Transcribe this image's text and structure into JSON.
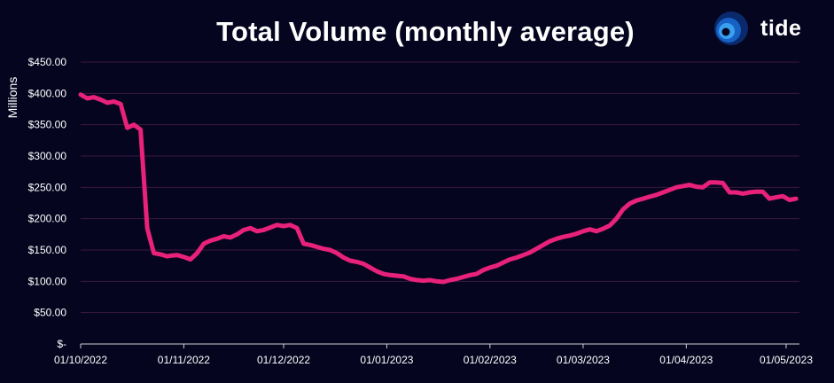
{
  "chart_data": {
    "type": "line",
    "title": "Total Volume (monthly average)",
    "ylabel": "Millions",
    "xlabel": "",
    "ylim": [
      0,
      450
    ],
    "y_ticks": [
      0,
      50,
      100,
      150,
      200,
      250,
      300,
      350,
      400,
      450
    ],
    "y_tick_labels": [
      "$-",
      "$50.00",
      "$100.00",
      "$150.00",
      "$200.00",
      "$250.00",
      "$300.00",
      "$350.00",
      "$400.00",
      "$450.00"
    ],
    "x_tick_labels": [
      "01/10/2022",
      "01/11/2022",
      "01/12/2022",
      "01/01/2023",
      "01/02/2023",
      "01/03/2023",
      "01/04/2023",
      "01/05/2023"
    ],
    "x_tick_dates": [
      "2022-10-01",
      "2022-11-01",
      "2022-12-01",
      "2023-01-01",
      "2023-02-01",
      "2023-03-01",
      "2023-04-01",
      "2023-05-01"
    ],
    "x_range": [
      "2022-10-01",
      "2023-05-05"
    ],
    "grid": "horizontal",
    "series": [
      {
        "color": "#e8217a",
        "x": [
          "2022-10-01",
          "2022-10-03",
          "2022-10-05",
          "2022-10-07",
          "2022-10-09",
          "2022-10-11",
          "2022-10-13",
          "2022-10-15",
          "2022-10-17",
          "2022-10-19",
          "2022-10-21",
          "2022-10-23",
          "2022-10-25",
          "2022-10-27",
          "2022-10-28",
          "2022-10-30",
          "2022-11-01",
          "2022-11-03",
          "2022-11-05",
          "2022-11-07",
          "2022-11-09",
          "2022-11-11",
          "2022-11-13",
          "2022-11-15",
          "2022-11-17",
          "2022-11-19",
          "2022-11-21",
          "2022-11-23",
          "2022-11-25",
          "2022-11-27",
          "2022-11-29",
          "2022-12-01",
          "2022-12-03",
          "2022-12-05",
          "2022-12-07",
          "2022-12-09",
          "2022-12-11",
          "2022-12-13",
          "2022-12-15",
          "2022-12-17",
          "2022-12-19",
          "2022-12-21",
          "2022-12-23",
          "2022-12-25",
          "2022-12-27",
          "2022-12-29",
          "2022-12-31",
          "2023-01-02",
          "2023-01-04",
          "2023-01-06",
          "2023-01-08",
          "2023-01-10",
          "2023-01-12",
          "2023-01-14",
          "2023-01-16",
          "2023-01-18",
          "2023-01-20",
          "2023-01-22",
          "2023-01-24",
          "2023-01-26",
          "2023-01-28",
          "2023-01-30",
          "2023-02-01",
          "2023-02-03",
          "2023-02-05",
          "2023-02-07",
          "2023-02-09",
          "2023-02-11",
          "2023-02-13",
          "2023-02-15",
          "2023-02-17",
          "2023-02-19",
          "2023-02-21",
          "2023-02-23",
          "2023-02-25",
          "2023-02-27",
          "2023-03-01",
          "2023-03-03",
          "2023-03-05",
          "2023-03-07",
          "2023-03-09",
          "2023-03-11",
          "2023-03-13",
          "2023-03-15",
          "2023-03-17",
          "2023-03-19",
          "2023-03-21",
          "2023-03-23",
          "2023-03-25",
          "2023-03-27",
          "2023-03-29",
          "2023-03-31",
          "2023-04-02",
          "2023-04-04",
          "2023-04-06",
          "2023-04-08",
          "2023-04-10",
          "2023-04-12",
          "2023-04-14",
          "2023-04-16",
          "2023-04-18",
          "2023-04-20",
          "2023-04-22",
          "2023-04-24",
          "2023-04-26",
          "2023-04-28",
          "2023-04-30",
          "2023-05-02",
          "2023-05-04"
        ],
        "y": [
          398,
          392,
          394,
          390,
          385,
          387,
          383,
          345,
          350,
          342,
          185,
          145,
          143,
          140,
          141,
          142,
          139,
          135,
          145,
          160,
          165,
          168,
          172,
          170,
          175,
          182,
          185,
          180,
          182,
          186,
          190,
          188,
          190,
          185,
          160,
          158,
          155,
          152,
          150,
          145,
          138,
          133,
          131,
          128,
          122,
          116,
          112,
          110,
          109,
          108,
          104,
          102,
          101,
          102,
          100,
          99,
          102,
          104,
          107,
          110,
          112,
          118,
          122,
          125,
          130,
          135,
          138,
          142,
          146,
          152,
          158,
          164,
          168,
          171,
          173,
          176,
          180,
          183,
          180,
          184,
          189,
          200,
          215,
          224,
          229,
          232,
          235,
          238,
          242,
          246,
          250,
          252,
          254,
          251,
          250,
          258,
          258,
          257,
          242,
          242,
          240,
          242,
          243,
          243,
          232,
          234,
          236,
          230,
          232
        ]
      }
    ]
  },
  "brand": {
    "name": "tide",
    "logo_colors": [
      "#0a2a6e",
      "#1f7bd6",
      "#6fc3ff"
    ]
  }
}
